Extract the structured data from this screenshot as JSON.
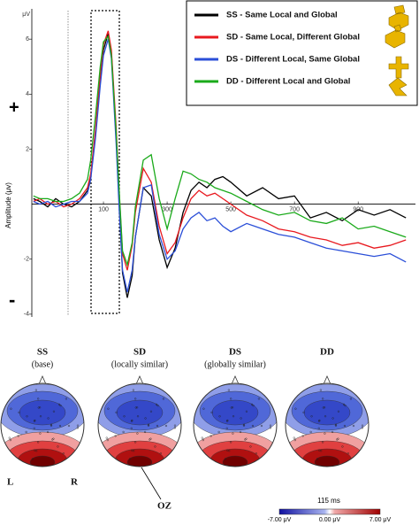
{
  "chart_data": {
    "type": "line",
    "y_unit": "μV",
    "ylabel": "Amplitude (μv)",
    "plus_sign": "+",
    "minus_sign": "-",
    "x": [
      -120,
      -100,
      -75,
      -50,
      -25,
      0,
      25,
      50,
      60,
      75,
      90,
      100,
      115,
      125,
      140,
      150,
      160,
      175,
      190,
      200,
      225,
      250,
      275,
      300,
      325,
      350,
      375,
      400,
      425,
      450,
      475,
      500,
      550,
      600,
      650,
      700,
      750,
      800,
      850,
      900,
      950,
      1000,
      1050
    ],
    "series": [
      {
        "name": "SS - Same Local and Global",
        "color": "#000000",
        "values": [
          0.2,
          0.1,
          -0.1,
          0.2,
          0,
          -0.1,
          0.1,
          0.5,
          1,
          2.5,
          4.5,
          5.6,
          6.2,
          5.5,
          2.5,
          0,
          -2.5,
          -3.4,
          -2.6,
          -1.2,
          0.6,
          0.3,
          -1.3,
          -2.3,
          -1.6,
          -0.3,
          0.5,
          0.8,
          0.6,
          0.9,
          1.0,
          0.8,
          0.3,
          0.6,
          0.2,
          0.3,
          -0.5,
          -0.3,
          -0.6,
          -0.2,
          -0.4,
          -0.2,
          -0.5
        ]
      },
      {
        "name": "SD - Same Local, Different Global",
        "color": "#e8191f",
        "values": [
          0.1,
          0.2,
          0,
          0.1,
          -0.1,
          0,
          0.2,
          0.6,
          1.1,
          2.7,
          4.7,
          5.8,
          6.3,
          5.6,
          2.8,
          0.3,
          -1.8,
          -2.4,
          -1.5,
          -0.3,
          1.3,
          0.8,
          -0.8,
          -1.8,
          -1.4,
          -0.5,
          0.2,
          0.5,
          0.3,
          0.4,
          0.2,
          0,
          -0.4,
          -0.6,
          -0.9,
          -1.0,
          -1.2,
          -1.3,
          -1.5,
          -1.4,
          -1.6,
          -1.5,
          -1.3
        ]
      },
      {
        "name": "DS - Different Local, Same Global",
        "color": "#2b4fd8",
        "values": [
          0.1,
          0,
          0.1,
          -0.1,
          0,
          0.1,
          0.1,
          0.4,
          0.9,
          2.4,
          4.3,
          5.4,
          6.0,
          5.3,
          2.2,
          -0.3,
          -2.4,
          -3.2,
          -2.4,
          -1.2,
          0.6,
          0.7,
          -1.1,
          -2.0,
          -1.7,
          -0.9,
          -0.5,
          -0.3,
          -0.6,
          -0.5,
          -0.8,
          -1.0,
          -0.7,
          -0.9,
          -1.1,
          -1.2,
          -1.4,
          -1.6,
          -1.7,
          -1.8,
          -1.9,
          -1.8,
          -2.1
        ]
      },
      {
        "name": "DD - Different Local and Global",
        "color": "#1aaa1a",
        "values": [
          0.3,
          0.2,
          0.2,
          0.1,
          0.1,
          0.2,
          0.4,
          0.9,
          1.6,
          3.2,
          5.0,
          5.9,
          6.1,
          5.4,
          2.6,
          0.4,
          -1.7,
          -2.2,
          -1.4,
          -0.1,
          1.6,
          1.8,
          0.2,
          -0.9,
          0.2,
          1.2,
          1.1,
          0.9,
          0.8,
          0.6,
          0.5,
          0.4,
          0.1,
          -0.2,
          -0.4,
          -0.3,
          -0.6,
          -0.7,
          -0.5,
          -0.9,
          -0.8,
          -1.0,
          -1.2
        ]
      }
    ],
    "xlim": [
      -125,
      1080
    ],
    "xticks": [
      100,
      300,
      500,
      700,
      900
    ],
    "ylim": [
      -4.1,
      7.1
    ],
    "yticks": [
      6,
      4,
      2,
      -2,
      -4
    ],
    "grid": false,
    "legend": "top-right"
  },
  "topomaps": {
    "conditions": [
      {
        "label": "SS",
        "sublabel": "(base)"
      },
      {
        "label": "SD",
        "sublabel": "(locally similar)"
      },
      {
        "label": "DS",
        "sublabel": "(globally similar)"
      },
      {
        "label": "DD",
        "sublabel": ""
      }
    ],
    "left": "L",
    "right": "R",
    "electrode": "OZ",
    "time": "115 ms",
    "colorbar_labels": [
      "-7.00 μV",
      "0.00 μV",
      "7.00 μV"
    ]
  }
}
